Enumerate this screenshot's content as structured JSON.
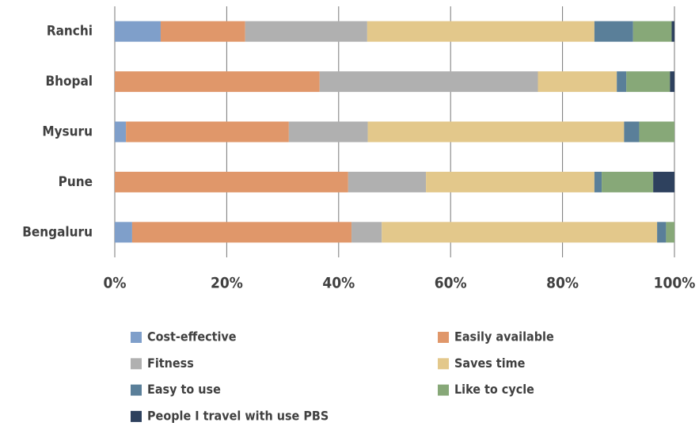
{
  "chart_data": {
    "type": "stacked-bar-horizontal",
    "categories": [
      "Ranchi",
      "Bhopal",
      "Mysuru",
      "Pune",
      "Bengaluru"
    ],
    "series": [
      {
        "name": "Cost-effective",
        "color": "#7f9fca",
        "values": [
          8.2,
          0,
          2.0,
          0,
          3.1
        ]
      },
      {
        "name": "Easily available",
        "color": "#e0976a",
        "values": [
          15.1,
          36.6,
          29.1,
          41.7,
          39.2
        ]
      },
      {
        "name": "Fitness",
        "color": "#b0b0b0",
        "values": [
          21.8,
          39.0,
          14.1,
          13.9,
          5.4
        ]
      },
      {
        "name": "Saves time",
        "color": "#e3c88b",
        "values": [
          40.6,
          14.1,
          45.8,
          30.1,
          49.2
        ]
      },
      {
        "name": "Easy to use",
        "color": "#5a7f99",
        "values": [
          6.9,
          1.7,
          2.7,
          1.3,
          1.6
        ]
      },
      {
        "name": "Like to cycle",
        "color": "#87a878",
        "values": [
          6.9,
          7.8,
          6.3,
          9.2,
          1.5
        ]
      },
      {
        "name": "People I travel with use PBS",
        "color": "#2e415e",
        "values": [
          0.5,
          0.8,
          0,
          3.8,
          0
        ]
      }
    ],
    "xlim": [
      0,
      100
    ],
    "xticks": [
      {
        "value": 0,
        "label": "0%"
      },
      {
        "value": 20,
        "label": "20%"
      },
      {
        "value": 40,
        "label": "40%"
      },
      {
        "value": 60,
        "label": "60%"
      },
      {
        "value": 80,
        "label": "80%"
      },
      {
        "value": 100,
        "label": "100%"
      }
    ],
    "grid": true,
    "legend": "bottom"
  }
}
